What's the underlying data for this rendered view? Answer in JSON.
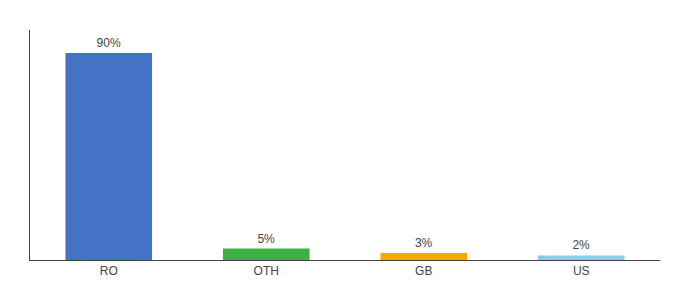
{
  "chart_data": {
    "type": "bar",
    "categories": [
      "RO",
      "OTH",
      "GB",
      "US"
    ],
    "values": [
      90,
      5,
      3,
      2
    ],
    "value_labels": [
      "90%",
      "5%",
      "3%",
      "2%"
    ],
    "data_labels": true,
    "colors": [
      "#4472c4",
      "#3cb043",
      "#ffa500",
      "#87ceeb"
    ],
    "ylim": [
      0,
      100
    ],
    "grid": false,
    "tick_labels": "x"
  }
}
